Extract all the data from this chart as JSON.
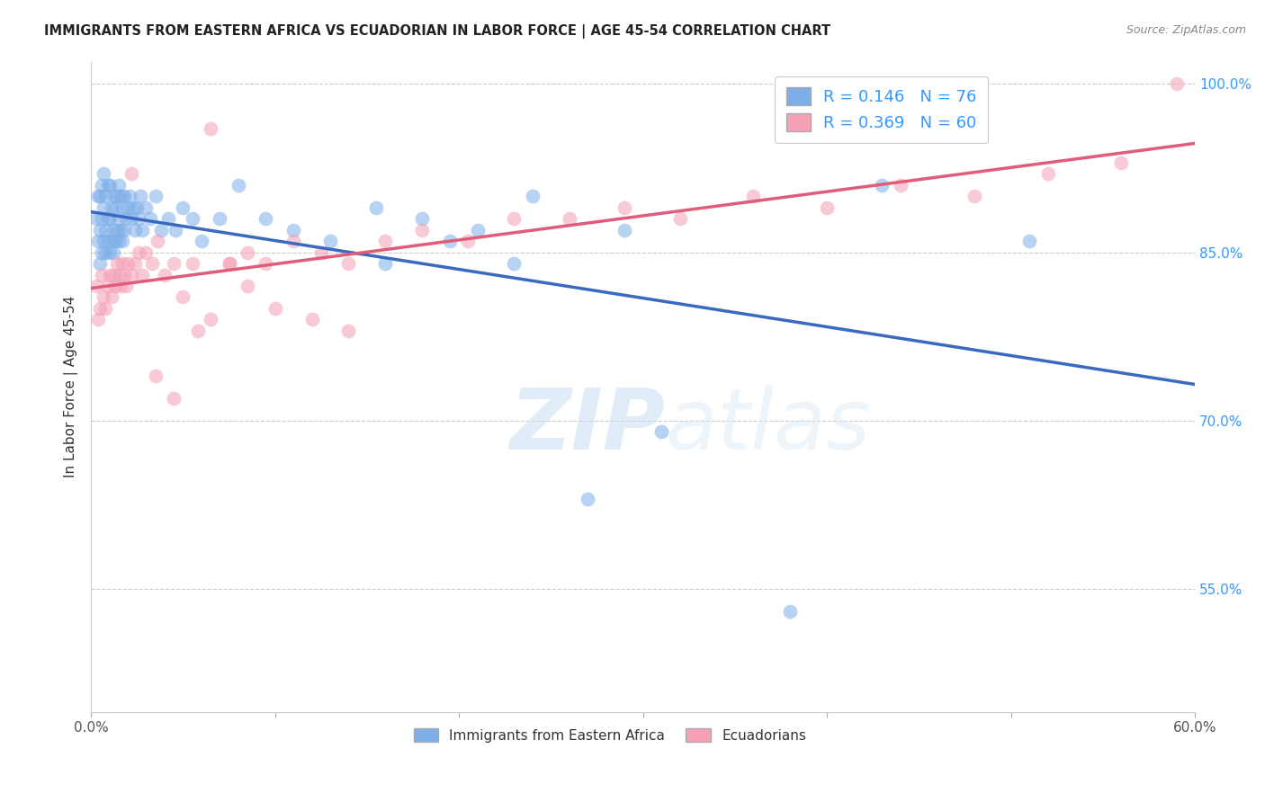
{
  "title": "IMMIGRANTS FROM EASTERN AFRICA VS ECUADORIAN IN LABOR FORCE | AGE 45-54 CORRELATION CHART",
  "source": "Source: ZipAtlas.com",
  "ylabel": "In Labor Force | Age 45-54",
  "xlim": [
    0.0,
    0.6
  ],
  "ylim": [
    0.44,
    1.02
  ],
  "ytick_right_labels": [
    "55.0%",
    "70.0%",
    "85.0%",
    "100.0%"
  ],
  "ytick_right_pos": [
    0.55,
    0.7,
    0.85,
    1.0
  ],
  "blue_R": 0.146,
  "blue_N": 76,
  "pink_R": 0.369,
  "pink_N": 60,
  "blue_color": "#7daee8",
  "pink_color": "#f4a0b5",
  "blue_line_color": "#3a6abf",
  "pink_line_color": "#e05c7a",
  "legend_label_blue": "Immigrants from Eastern Africa",
  "legend_label_pink": "Ecuadorians",
  "blue_x": [
    0.003,
    0.004,
    0.004,
    0.005,
    0.005,
    0.005,
    0.006,
    0.006,
    0.006,
    0.007,
    0.007,
    0.007,
    0.008,
    0.008,
    0.008,
    0.009,
    0.009,
    0.009,
    0.01,
    0.01,
    0.01,
    0.011,
    0.011,
    0.012,
    0.012,
    0.012,
    0.013,
    0.013,
    0.014,
    0.014,
    0.015,
    0.015,
    0.015,
    0.016,
    0.016,
    0.017,
    0.017,
    0.018,
    0.018,
    0.019,
    0.02,
    0.021,
    0.022,
    0.023,
    0.024,
    0.025,
    0.026,
    0.027,
    0.028,
    0.03,
    0.032,
    0.035,
    0.038,
    0.042,
    0.046,
    0.05,
    0.055,
    0.06,
    0.07,
    0.08,
    0.095,
    0.11,
    0.13,
    0.155,
    0.18,
    0.21,
    0.24,
    0.29,
    0.16,
    0.195,
    0.23,
    0.27,
    0.31,
    0.38,
    0.43,
    0.51
  ],
  "blue_y": [
    0.88,
    0.86,
    0.9,
    0.84,
    0.87,
    0.9,
    0.85,
    0.88,
    0.91,
    0.86,
    0.89,
    0.92,
    0.85,
    0.87,
    0.9,
    0.86,
    0.88,
    0.91,
    0.85,
    0.88,
    0.91,
    0.86,
    0.89,
    0.85,
    0.87,
    0.9,
    0.86,
    0.89,
    0.87,
    0.9,
    0.86,
    0.88,
    0.91,
    0.87,
    0.9,
    0.86,
    0.89,
    0.87,
    0.9,
    0.88,
    0.89,
    0.9,
    0.88,
    0.89,
    0.87,
    0.89,
    0.88,
    0.9,
    0.87,
    0.89,
    0.88,
    0.9,
    0.87,
    0.88,
    0.87,
    0.89,
    0.88,
    0.86,
    0.88,
    0.91,
    0.88,
    0.87,
    0.86,
    0.89,
    0.88,
    0.87,
    0.9,
    0.87,
    0.84,
    0.86,
    0.84,
    0.63,
    0.69,
    0.53,
    0.91,
    0.86
  ],
  "pink_x": [
    0.003,
    0.004,
    0.005,
    0.006,
    0.007,
    0.008,
    0.009,
    0.01,
    0.011,
    0.012,
    0.013,
    0.014,
    0.015,
    0.016,
    0.017,
    0.018,
    0.019,
    0.02,
    0.022,
    0.024,
    0.026,
    0.028,
    0.03,
    0.033,
    0.036,
    0.04,
    0.045,
    0.05,
    0.058,
    0.065,
    0.075,
    0.085,
    0.095,
    0.11,
    0.125,
    0.14,
    0.16,
    0.18,
    0.205,
    0.23,
    0.26,
    0.29,
    0.32,
    0.36,
    0.4,
    0.44,
    0.48,
    0.52,
    0.56,
    0.59,
    0.022,
    0.035,
    0.045,
    0.055,
    0.065,
    0.075,
    0.085,
    0.1,
    0.12,
    0.14
  ],
  "pink_y": [
    0.82,
    0.79,
    0.8,
    0.83,
    0.81,
    0.8,
    0.82,
    0.83,
    0.81,
    0.83,
    0.82,
    0.84,
    0.83,
    0.82,
    0.84,
    0.83,
    0.82,
    0.84,
    0.83,
    0.84,
    0.85,
    0.83,
    0.85,
    0.84,
    0.86,
    0.83,
    0.84,
    0.81,
    0.78,
    0.79,
    0.84,
    0.85,
    0.84,
    0.86,
    0.85,
    0.84,
    0.86,
    0.87,
    0.86,
    0.88,
    0.88,
    0.89,
    0.88,
    0.9,
    0.89,
    0.91,
    0.9,
    0.92,
    0.93,
    1.0,
    0.92,
    0.74,
    0.72,
    0.84,
    0.96,
    0.84,
    0.82,
    0.8,
    0.79,
    0.78
  ]
}
